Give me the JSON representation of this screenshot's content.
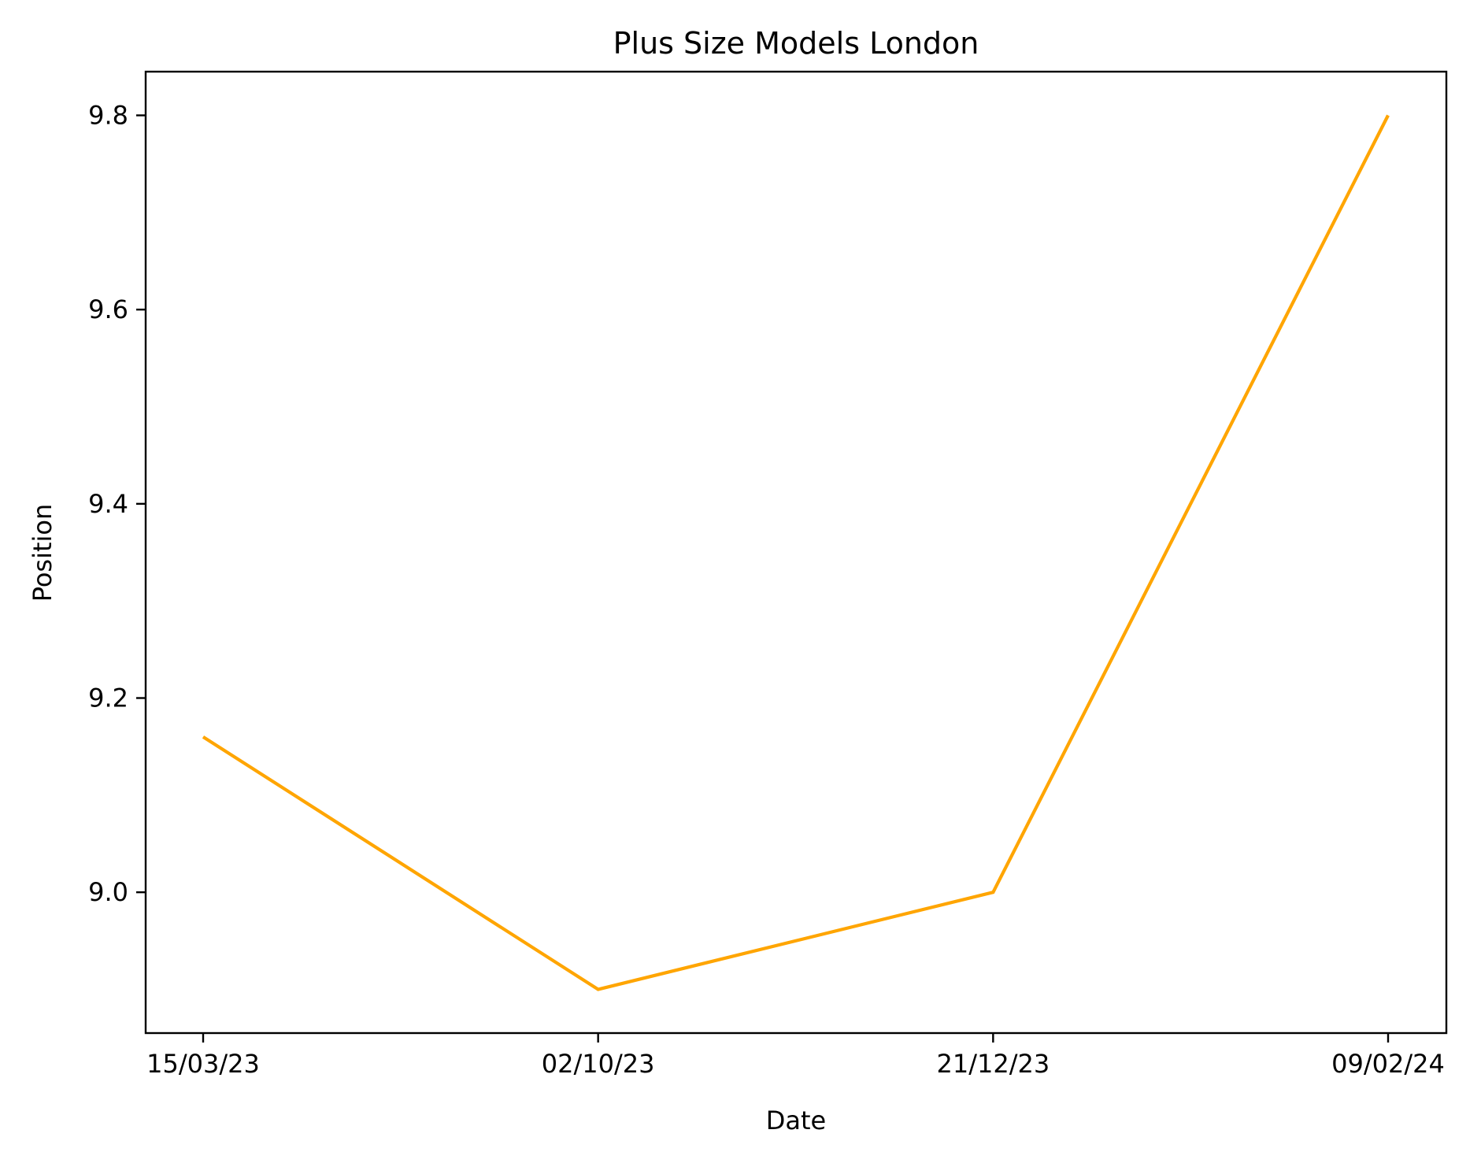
{
  "chart_data": {
    "type": "line",
    "title": "Plus Size Models London",
    "xlabel": "Date",
    "ylabel": "Position",
    "categories": [
      "15/03/23",
      "02/10/23",
      "21/12/23",
      "09/02/24"
    ],
    "series": [
      {
        "values": [
          9.16,
          8.9,
          9.0,
          9.8
        ],
        "color": "#ffa500"
      }
    ],
    "yticks": [
      "9.0",
      "9.2",
      "9.4",
      "9.6",
      "9.8"
    ],
    "ylim": [
      8.855,
      9.845
    ],
    "grid": false
  }
}
